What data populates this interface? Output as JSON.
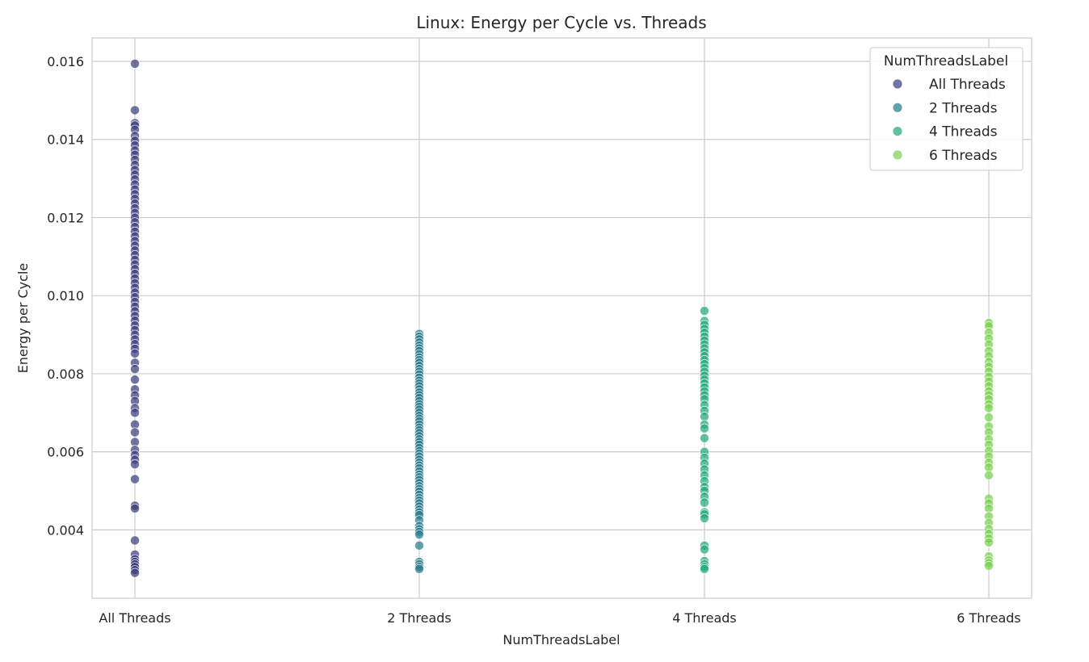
{
  "chart_data": {
    "type": "scatter",
    "title": "Linux: Energy per Cycle vs. Threads",
    "xlabel": "NumThreadsLabel",
    "ylabel": "Energy per Cycle",
    "categories": [
      "All Threads",
      "2 Threads",
      "4 Threads",
      "6 Threads"
    ],
    "ylim": [
      0.00225,
      0.0166
    ],
    "yticks": [
      0.004,
      0.006,
      0.008,
      0.01,
      0.012,
      0.014,
      0.016
    ],
    "ytick_labels": [
      "0.004",
      "0.006",
      "0.008",
      "0.010",
      "0.012",
      "0.014",
      "0.016"
    ],
    "grid": true,
    "legend": {
      "title": "NumThreadsLabel",
      "placement": "top-right",
      "entries": [
        "All Threads",
        "2 Threads",
        "4 Threads",
        "6 Threads"
      ]
    },
    "colors": [
      "#3b3f7d",
      "#2a7c8e",
      "#25a980",
      "#7ad151"
    ],
    "series": [
      {
        "name": "All Threads",
        "category": "All Threads",
        "values": [
          0.01594,
          0.01475,
          0.01442,
          0.01436,
          0.01425,
          0.01409,
          0.01397,
          0.01385,
          0.01372,
          0.01361,
          0.01348,
          0.01335,
          0.01322,
          0.0131,
          0.01298,
          0.01285,
          0.01272,
          0.0126,
          0.01248,
          0.01236,
          0.01224,
          0.01212,
          0.012,
          0.01188,
          0.01176,
          0.01164,
          0.01152,
          0.0114,
          0.01128,
          0.01116,
          0.01104,
          0.01092,
          0.0108,
          0.01068,
          0.01056,
          0.01044,
          0.01032,
          0.0102,
          0.01008,
          0.00996,
          0.00984,
          0.00972,
          0.0096,
          0.00948,
          0.00936,
          0.00924,
          0.00912,
          0.009,
          0.00888,
          0.00876,
          0.00864,
          0.00852,
          0.00828,
          0.00812,
          0.00785,
          0.0076,
          0.00745,
          0.0073,
          0.00712,
          0.007,
          0.0067,
          0.0065,
          0.00625,
          0.00605,
          0.00592,
          0.0058,
          0.00568,
          0.0053,
          0.00462,
          0.00455,
          0.00373,
          0.00337,
          0.00325,
          0.00318,
          0.00312,
          0.00305,
          0.00297,
          0.0029
        ]
      },
      {
        "name": "2 Threads",
        "category": "2 Threads",
        "values": [
          0.00902,
          0.00895,
          0.00888,
          0.0088,
          0.00872,
          0.00865,
          0.00858,
          0.0085,
          0.00842,
          0.00835,
          0.00828,
          0.0082,
          0.00812,
          0.00805,
          0.00798,
          0.0079,
          0.00782,
          0.00775,
          0.00768,
          0.0076,
          0.00752,
          0.00745,
          0.00738,
          0.0073,
          0.00722,
          0.00715,
          0.00708,
          0.007,
          0.00692,
          0.00685,
          0.00678,
          0.0067,
          0.00662,
          0.00655,
          0.00648,
          0.0064,
          0.00632,
          0.00625,
          0.00618,
          0.0061,
          0.00602,
          0.00595,
          0.00588,
          0.0058,
          0.00572,
          0.00565,
          0.00558,
          0.0055,
          0.00542,
          0.00535,
          0.00528,
          0.0052,
          0.00512,
          0.00505,
          0.00498,
          0.0049,
          0.00482,
          0.00475,
          0.00468,
          0.0046,
          0.00452,
          0.00445,
          0.00438,
          0.00425,
          0.0041,
          0.00402,
          0.00395,
          0.00388,
          0.0036,
          0.00318,
          0.00312,
          0.00305,
          0.003
        ]
      },
      {
        "name": "4 Threads",
        "category": "4 Threads",
        "values": [
          0.00961,
          0.00935,
          0.00925,
          0.00915,
          0.00905,
          0.00895,
          0.00885,
          0.00875,
          0.00865,
          0.00855,
          0.00845,
          0.00835,
          0.00825,
          0.00815,
          0.00805,
          0.00795,
          0.00785,
          0.00775,
          0.00765,
          0.00755,
          0.00745,
          0.00735,
          0.0072,
          0.00705,
          0.0069,
          0.0067,
          0.0066,
          0.00635,
          0.006,
          0.00585,
          0.0057,
          0.00555,
          0.0054,
          0.00525,
          0.0051,
          0.005,
          0.00485,
          0.0047,
          0.00445,
          0.0044,
          0.0043,
          0.0036,
          0.0035,
          0.0032,
          0.00312,
          0.00305,
          0.003
        ]
      },
      {
        "name": "6 Threads",
        "category": "6 Threads",
        "values": [
          0.0093,
          0.00922,
          0.00905,
          0.0089,
          0.00875,
          0.00858,
          0.00845,
          0.0083,
          0.00818,
          0.00805,
          0.00792,
          0.0078,
          0.00768,
          0.00755,
          0.00745,
          0.00735,
          0.00722,
          0.00712,
          0.00688,
          0.00665,
          0.0065,
          0.00632,
          0.00618,
          0.00602,
          0.00588,
          0.00572,
          0.0056,
          0.0054,
          0.0048,
          0.00468,
          0.00455,
          0.00435,
          0.00418,
          0.00402,
          0.0039,
          0.00378,
          0.00368,
          0.00332,
          0.00322,
          0.00315,
          0.00308
        ]
      }
    ]
  }
}
